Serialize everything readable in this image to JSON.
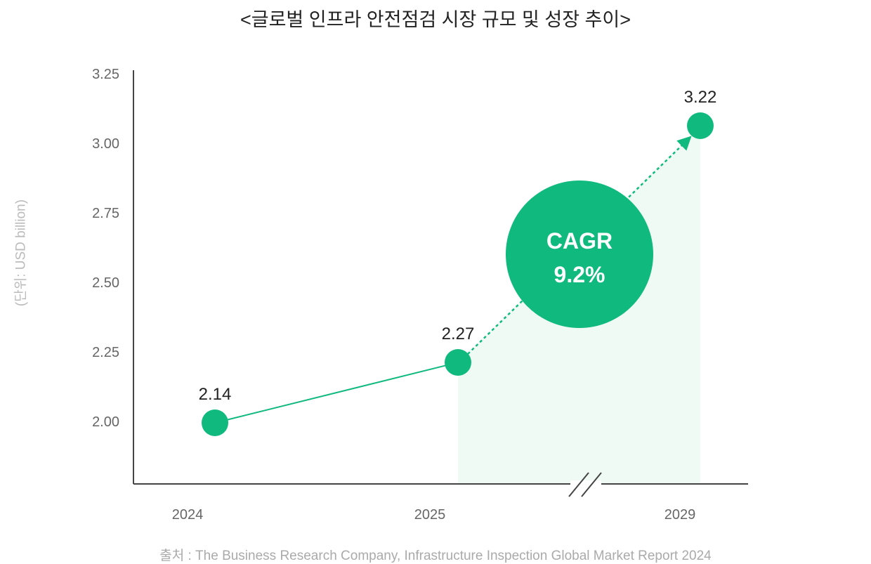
{
  "chart_data": {
    "type": "line",
    "title": "<글로벌 인프라 안전점검 시장 규모 및 성장 추이>",
    "ylabel": "(단위: USD billion)",
    "xlabel": "",
    "categories": [
      "2024",
      "2025",
      "2029"
    ],
    "values": [
      2.14,
      2.27,
      3.22
    ],
    "data_labels": [
      "2.14",
      "2.27",
      "3.22"
    ],
    "yticks": [
      "2.00",
      "2.25",
      "2.50",
      "2.75",
      "3.00",
      "3.25"
    ],
    "ylim": [
      2.0,
      3.25
    ],
    "grid": false,
    "axis_break": "between 2025 and 2029",
    "projection_style": "dotted arrow with shaded area from 2025 to 2029",
    "annotation": {
      "line1": "CAGR",
      "line2": "9.2%"
    },
    "colors": {
      "accent": "#10BA7E",
      "shade": "#F0FAF5",
      "axis": "#444444"
    }
  },
  "source": "출처 : The Business Research Company, Infrastructure Inspection Global Market Report 2024"
}
